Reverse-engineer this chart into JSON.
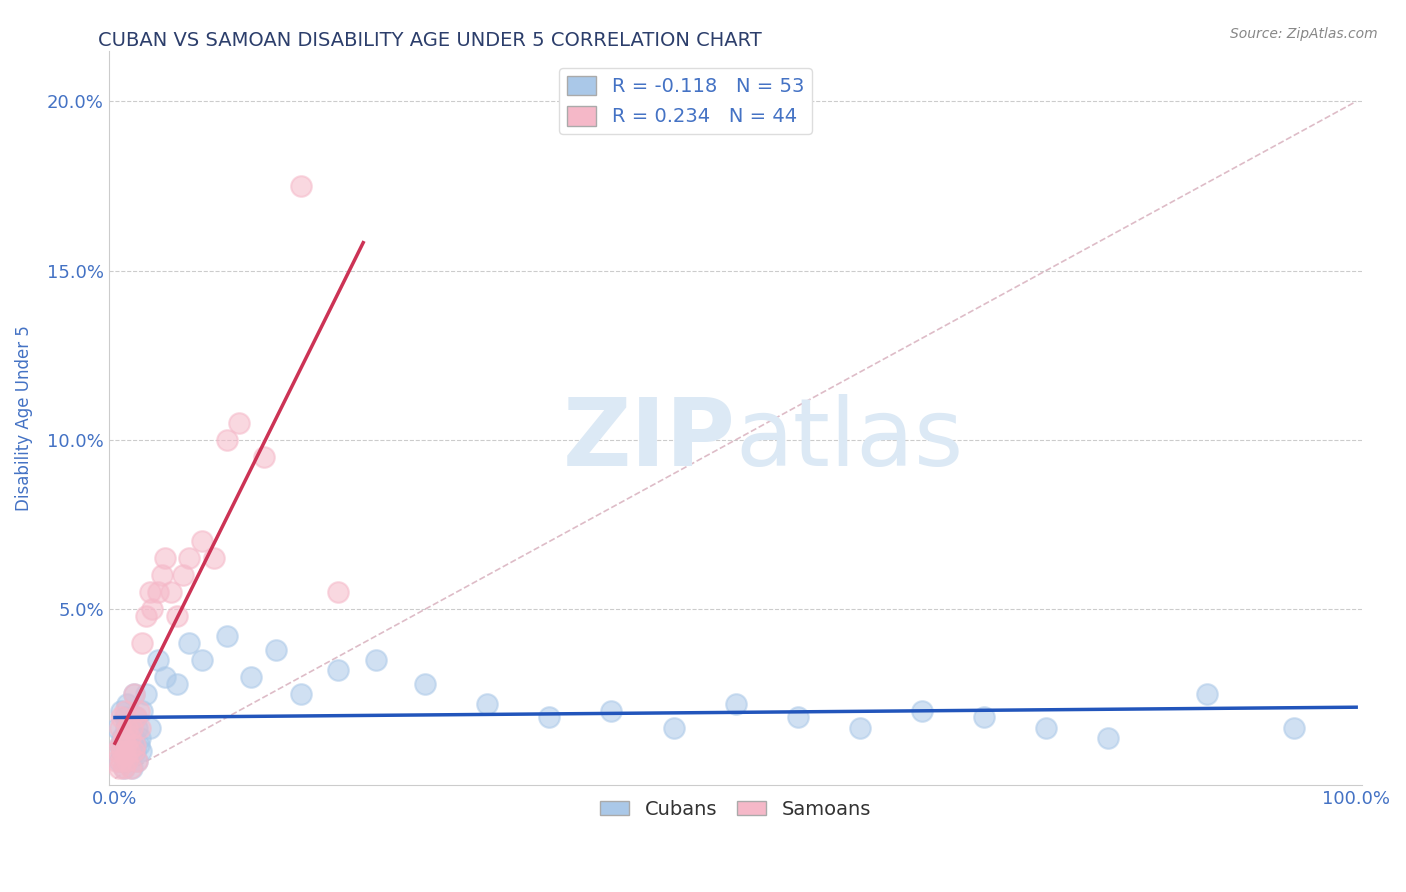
{
  "title": "CUBAN VS SAMOAN DISABILITY AGE UNDER 5 CORRELATION CHART",
  "source": "Source: ZipAtlas.com",
  "ylabel": "Disability Age Under 5",
  "xlim": [
    -0.005,
    1.005
  ],
  "ylim": [
    -0.002,
    0.215
  ],
  "xticks": [
    0.0,
    0.25,
    0.5,
    0.75,
    1.0
  ],
  "xticklabels": [
    "0.0%",
    "",
    "",
    "",
    "100.0%"
  ],
  "yticks": [
    0.0,
    0.05,
    0.1,
    0.15,
    0.2
  ],
  "yticklabels": [
    "",
    "5.0%",
    "10.0%",
    "15.0%",
    "20.0%"
  ],
  "title_color": "#2c3e6b",
  "title_fontsize": 14,
  "axis_color": "#4472c4",
  "source_color": "#888888",
  "watermark_color": "#dce9f5",
  "cuban_color": "#aac8e8",
  "samoan_color": "#f5b8c8",
  "cuban_R": -0.118,
  "cuban_N": 53,
  "samoan_R": 0.234,
  "samoan_N": 44,
  "legend_label_cuban": "Cubans",
  "legend_label_samoan": "Samoans",
  "cuban_line_color": "#2255bb",
  "samoan_line_color": "#cc3355",
  "ref_line_color": "#d0a0b0",
  "grid_color": "#cccccc",
  "cubans_x": [
    0.002,
    0.003,
    0.004,
    0.005,
    0.005,
    0.006,
    0.007,
    0.008,
    0.008,
    0.009,
    0.01,
    0.01,
    0.011,
    0.012,
    0.013,
    0.014,
    0.015,
    0.015,
    0.016,
    0.017,
    0.018,
    0.018,
    0.019,
    0.02,
    0.021,
    0.022,
    0.025,
    0.028,
    0.035,
    0.04,
    0.05,
    0.06,
    0.07,
    0.09,
    0.11,
    0.13,
    0.15,
    0.18,
    0.21,
    0.25,
    0.3,
    0.35,
    0.4,
    0.45,
    0.5,
    0.55,
    0.6,
    0.65,
    0.7,
    0.75,
    0.8,
    0.88,
    0.95
  ],
  "cubans_y": [
    0.015,
    0.005,
    0.01,
    0.008,
    0.02,
    0.012,
    0.003,
    0.018,
    0.007,
    0.015,
    0.005,
    0.022,
    0.01,
    0.008,
    0.015,
    0.003,
    0.012,
    0.025,
    0.008,
    0.018,
    0.005,
    0.015,
    0.01,
    0.012,
    0.008,
    0.02,
    0.025,
    0.015,
    0.035,
    0.03,
    0.028,
    0.04,
    0.035,
    0.042,
    0.03,
    0.038,
    0.025,
    0.032,
    0.035,
    0.028,
    0.022,
    0.018,
    0.02,
    0.015,
    0.022,
    0.018,
    0.015,
    0.02,
    0.018,
    0.015,
    0.012,
    0.025,
    0.015
  ],
  "samoans_x": [
    0.001,
    0.002,
    0.003,
    0.004,
    0.004,
    0.005,
    0.005,
    0.006,
    0.007,
    0.007,
    0.008,
    0.008,
    0.009,
    0.01,
    0.01,
    0.011,
    0.012,
    0.013,
    0.014,
    0.015,
    0.015,
    0.016,
    0.017,
    0.018,
    0.019,
    0.02,
    0.022,
    0.025,
    0.028,
    0.03,
    0.035,
    0.038,
    0.04,
    0.045,
    0.05,
    0.055,
    0.06,
    0.07,
    0.08,
    0.09,
    0.1,
    0.12,
    0.15,
    0.18
  ],
  "samoans_y": [
    0.005,
    0.008,
    0.003,
    0.01,
    0.015,
    0.005,
    0.018,
    0.008,
    0.012,
    0.003,
    0.007,
    0.02,
    0.01,
    0.005,
    0.015,
    0.008,
    0.012,
    0.003,
    0.015,
    0.008,
    0.025,
    0.01,
    0.018,
    0.005,
    0.02,
    0.015,
    0.04,
    0.048,
    0.055,
    0.05,
    0.055,
    0.06,
    0.065,
    0.055,
    0.048,
    0.06,
    0.065,
    0.07,
    0.065,
    0.1,
    0.105,
    0.095,
    0.175,
    0.055
  ]
}
